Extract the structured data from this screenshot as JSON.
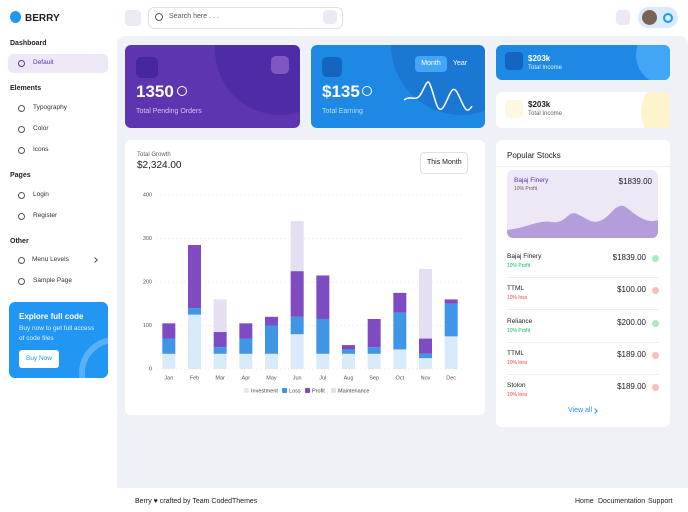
{
  "brand": "BERRY",
  "search_placeholder": "Search here . . .",
  "sidebar": [
    {
      "title": "Dashboard",
      "items": [
        "Default"
      ]
    },
    {
      "title": "Elements",
      "items": [
        "Typography",
        "Color",
        "Icons"
      ]
    },
    {
      "title": "Pages",
      "items": [
        "Login",
        "Register"
      ]
    },
    {
      "title": "Other",
      "items": [
        "Menu Levels",
        "Sample Page"
      ]
    }
  ],
  "promo": {
    "title": "Explore full code",
    "text": "Buy now to get full access of code files",
    "button": "Buy Now"
  },
  "cards": {
    "orders": {
      "value": "1350",
      "label": "Total Pending Orders"
    },
    "earning": {
      "value": "$135",
      "label": "Total Earning",
      "tabs": [
        "Month",
        "Year"
      ]
    },
    "income_dark": {
      "value": "$203k",
      "label": "Total Income"
    },
    "income_light": {
      "value": "$203k",
      "label": "Total Income"
    }
  },
  "growth": {
    "subtitle": "Total Growth",
    "total": "$2,324.00",
    "dropdown": "This Month"
  },
  "chart_data": {
    "type": "stacked_bar",
    "categories": [
      "Jan",
      "Feb",
      "Mar",
      "Apr",
      "May",
      "Jun",
      "Jul",
      "Aug",
      "Sep",
      "Oct",
      "Nov",
      "Dec"
    ],
    "series": [
      {
        "name": "Investment",
        "color": "#d9ebfa",
        "values": [
          35,
          125,
          35,
          35,
          35,
          80,
          35,
          35,
          35,
          45,
          25,
          75
        ]
      },
      {
        "name": "Loss",
        "color": "#3f95e6",
        "values": [
          35,
          15,
          15,
          35,
          65,
          40,
          80,
          10,
          15,
          85,
          10,
          75
        ]
      },
      {
        "name": "Profit",
        "color": "#7e4bc2",
        "values": [
          35,
          145,
          35,
          35,
          20,
          105,
          100,
          10,
          65,
          45,
          35,
          10
        ]
      },
      {
        "name": "Maintenance",
        "color": "#e6def3",
        "values": [
          0,
          0,
          75,
          0,
          0,
          115,
          0,
          0,
          0,
          0,
          160,
          0
        ]
      }
    ],
    "ylim": [
      0,
      400
    ],
    "yticks": [
      0,
      100,
      200,
      300,
      400
    ],
    "grid": true
  },
  "stocks": {
    "title": "Popular Stocks",
    "featured": {
      "name": "Bajaj Finery",
      "sub": "10% Profit",
      "price": "$1839.00"
    },
    "rows": [
      {
        "name": "Bajaj Finery",
        "sub": "10% Profit",
        "price": "$1839.00",
        "color": "#00c853"
      },
      {
        "name": "TTML",
        "sub": "10% loss",
        "price": "$100.00",
        "color": "#f44336"
      },
      {
        "name": "Reliance",
        "sub": "10% Profit",
        "price": "$200.00",
        "color": "#00c853"
      },
      {
        "name": "TTML",
        "sub": "10% loss",
        "price": "$189.00",
        "color": "#f44336"
      },
      {
        "name": "Stolon",
        "sub": "10% loss",
        "price": "$189.00",
        "color": "#f44336"
      }
    ],
    "view_all": "View all"
  },
  "footer": {
    "text": "Berry ♥ crafted by Team CodedThemes",
    "links": [
      "Home",
      "Documentation",
      "Support"
    ]
  }
}
